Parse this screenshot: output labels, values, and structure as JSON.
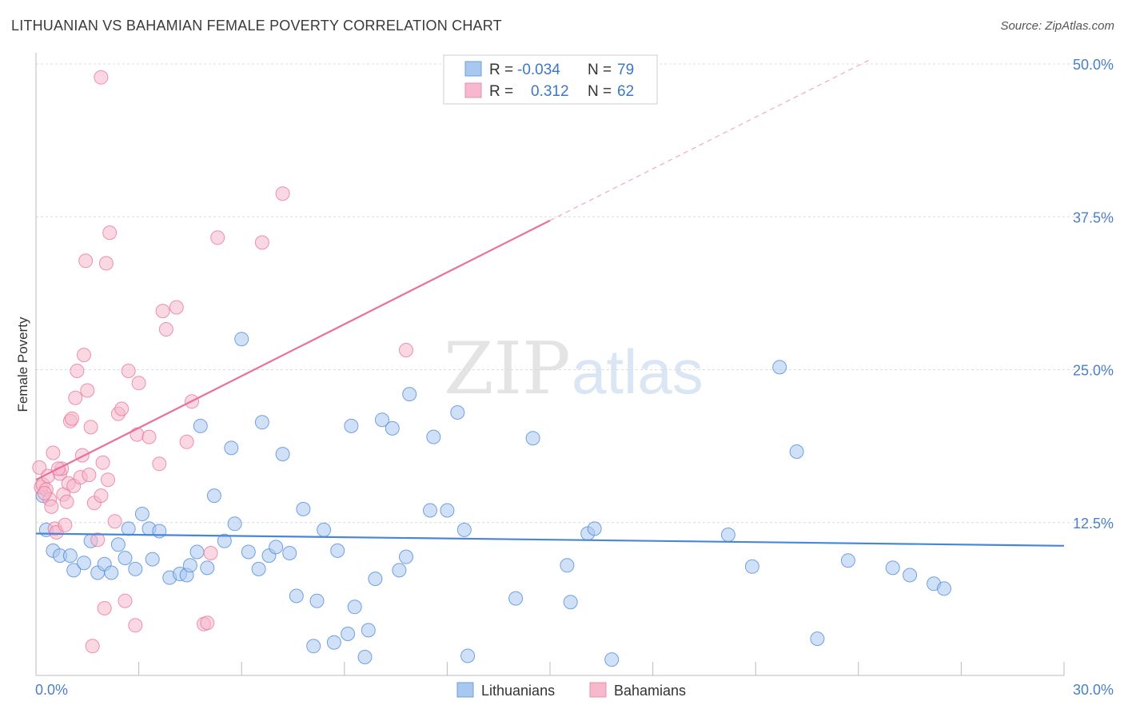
{
  "title": "LITHUANIAN VS BAHAMIAN FEMALE POVERTY CORRELATION CHART",
  "source": "Source: ZipAtlas.com",
  "watermark": {
    "zip": "ZIP",
    "atlas": "atlas"
  },
  "legend_box": {
    "rows": [
      {
        "r_label": "R =",
        "r_value": "-0.034",
        "n_label": "N =",
        "n_value": "79",
        "color": "#a9c8f0"
      },
      {
        "r_label": "R =",
        "r_value": " 0.312",
        "n_label": "N =",
        "n_value": "62",
        "color": "#f6b8cb"
      }
    ]
  },
  "chart_data": {
    "type": "scatter",
    "title": "LITHUANIAN VS BAHAMIAN FEMALE POVERTY CORRELATION CHART",
    "xlabel": "",
    "ylabel": "Female Poverty",
    "xlim": [
      0,
      30
    ],
    "ylim": [
      0,
      50
    ],
    "x_tick_labels": [
      "0.0%",
      "30.0%"
    ],
    "y_ticks": [
      12.5,
      25.0,
      37.5,
      50.0
    ],
    "y_tick_labels": [
      "12.5%",
      "25.0%",
      "37.5%",
      "50.0%"
    ],
    "grid": true,
    "legend_position": "bottom-center",
    "series": [
      {
        "name": "Lithuanians",
        "color": "#4a86d8",
        "fill": "#a9c8f0",
        "trend": {
          "x0": 0,
          "y0": 11.6,
          "x1": 30,
          "y1": 10.6
        },
        "points": [
          [
            0.2,
            14.7
          ],
          [
            0.3,
            11.9
          ],
          [
            0.5,
            10.2
          ],
          [
            0.7,
            9.8
          ],
          [
            1.0,
            9.8
          ],
          [
            1.1,
            8.6
          ],
          [
            1.4,
            9.2
          ],
          [
            1.6,
            11.0
          ],
          [
            1.8,
            8.4
          ],
          [
            2.0,
            9.1
          ],
          [
            2.2,
            8.4
          ],
          [
            2.4,
            10.7
          ],
          [
            2.6,
            9.6
          ],
          [
            2.7,
            12.0
          ],
          [
            2.9,
            8.7
          ],
          [
            3.1,
            13.2
          ],
          [
            3.3,
            12.0
          ],
          [
            3.4,
            9.5
          ],
          [
            3.6,
            11.8
          ],
          [
            3.9,
            8.0
          ],
          [
            4.2,
            8.3
          ],
          [
            4.4,
            8.2
          ],
          [
            4.5,
            9.0
          ],
          [
            4.7,
            10.1
          ],
          [
            4.8,
            20.4
          ],
          [
            5.0,
            8.8
          ],
          [
            5.2,
            14.7
          ],
          [
            5.5,
            11.0
          ],
          [
            5.7,
            18.6
          ],
          [
            5.8,
            12.4
          ],
          [
            6.0,
            27.5
          ],
          [
            6.2,
            10.1
          ],
          [
            6.5,
            8.7
          ],
          [
            6.6,
            20.7
          ],
          [
            6.8,
            9.8
          ],
          [
            7.0,
            10.5
          ],
          [
            7.2,
            18.1
          ],
          [
            7.4,
            10.0
          ],
          [
            7.6,
            6.5
          ],
          [
            7.8,
            13.6
          ],
          [
            8.1,
            2.4
          ],
          [
            8.2,
            6.1
          ],
          [
            8.4,
            11.9
          ],
          [
            8.7,
            2.7
          ],
          [
            8.8,
            10.2
          ],
          [
            9.1,
            3.4
          ],
          [
            9.2,
            20.4
          ],
          [
            9.3,
            5.6
          ],
          [
            9.6,
            1.5
          ],
          [
            9.7,
            3.7
          ],
          [
            9.9,
            7.9
          ],
          [
            10.1,
            20.9
          ],
          [
            10.4,
            20.2
          ],
          [
            10.6,
            8.6
          ],
          [
            10.8,
            9.7
          ],
          [
            10.9,
            23.0
          ],
          [
            11.5,
            13.5
          ],
          [
            11.6,
            19.5
          ],
          [
            12.0,
            13.5
          ],
          [
            12.3,
            21.5
          ],
          [
            12.5,
            11.9
          ],
          [
            12.6,
            1.6
          ],
          [
            14.0,
            6.3
          ],
          [
            14.5,
            19.4
          ],
          [
            15.5,
            9.0
          ],
          [
            15.6,
            6.0
          ],
          [
            16.1,
            11.6
          ],
          [
            16.3,
            12.0
          ],
          [
            16.8,
            1.3
          ],
          [
            20.2,
            11.5
          ],
          [
            20.9,
            8.9
          ],
          [
            21.7,
            25.2
          ],
          [
            22.2,
            18.3
          ],
          [
            22.8,
            3.0
          ],
          [
            23.7,
            9.4
          ],
          [
            25.0,
            8.8
          ],
          [
            25.5,
            8.2
          ],
          [
            26.2,
            7.5
          ],
          [
            26.5,
            7.1
          ]
        ]
      },
      {
        "name": "Bahamians",
        "color": "#e8709a",
        "fill": "#f6b8cb",
        "trend": {
          "x0": 0,
          "y0": 16.0,
          "x1": 15.0,
          "y1": 37.2,
          "dash_to_x": 24.3,
          "dash_to_y": 50.3
        },
        "points": [
          [
            0.1,
            17.0
          ],
          [
            0.15,
            15.4
          ],
          [
            0.2,
            15.6
          ],
          [
            0.3,
            15.2
          ],
          [
            0.35,
            16.3
          ],
          [
            0.4,
            14.4
          ],
          [
            0.5,
            18.2
          ],
          [
            0.55,
            12.0
          ],
          [
            0.6,
            11.7
          ],
          [
            0.7,
            16.5
          ],
          [
            0.75,
            16.9
          ],
          [
            0.8,
            14.8
          ],
          [
            0.9,
            14.2
          ],
          [
            0.95,
            15.7
          ],
          [
            1.0,
            20.8
          ],
          [
            1.05,
            21.0
          ],
          [
            1.1,
            15.5
          ],
          [
            1.15,
            22.7
          ],
          [
            1.2,
            24.9
          ],
          [
            1.3,
            16.2
          ],
          [
            1.35,
            18.0
          ],
          [
            1.4,
            26.2
          ],
          [
            1.45,
            33.9
          ],
          [
            1.5,
            23.3
          ],
          [
            1.55,
            16.4
          ],
          [
            1.6,
            20.3
          ],
          [
            1.7,
            14.1
          ],
          [
            1.8,
            11.1
          ],
          [
            1.9,
            14.7
          ],
          [
            1.95,
            17.4
          ],
          [
            2.0,
            5.5
          ],
          [
            2.05,
            33.7
          ],
          [
            2.1,
            16.0
          ],
          [
            2.15,
            36.2
          ],
          [
            2.3,
            12.6
          ],
          [
            2.4,
            21.4
          ],
          [
            2.5,
            21.8
          ],
          [
            2.6,
            6.1
          ],
          [
            2.7,
            24.9
          ],
          [
            2.9,
            4.1
          ],
          [
            2.95,
            19.7
          ],
          [
            3.0,
            23.9
          ],
          [
            3.3,
            19.5
          ],
          [
            3.6,
            17.3
          ],
          [
            3.7,
            29.8
          ],
          [
            3.8,
            28.3
          ],
          [
            4.1,
            30.1
          ],
          [
            4.4,
            19.1
          ],
          [
            4.55,
            22.4
          ],
          [
            4.9,
            4.2
          ],
          [
            5.0,
            4.3
          ],
          [
            5.1,
            10.0
          ],
          [
            5.3,
            35.8
          ],
          [
            6.6,
            35.4
          ],
          [
            7.2,
            39.4
          ],
          [
            10.8,
            26.6
          ],
          [
            1.9,
            48.9
          ],
          [
            1.65,
            2.4
          ],
          [
            0.25,
            14.9
          ],
          [
            0.45,
            13.8
          ],
          [
            0.65,
            16.9
          ],
          [
            0.85,
            12.3
          ]
        ]
      }
    ]
  },
  "axis": {
    "ylabel": "Female Poverty",
    "x_min_label": "0.0%",
    "x_max_label": "30.0%"
  },
  "bottom_legend": [
    {
      "label": "Lithuanians",
      "color": "#a9c8f0"
    },
    {
      "label": "Bahamians",
      "color": "#f6b8cb"
    }
  ]
}
